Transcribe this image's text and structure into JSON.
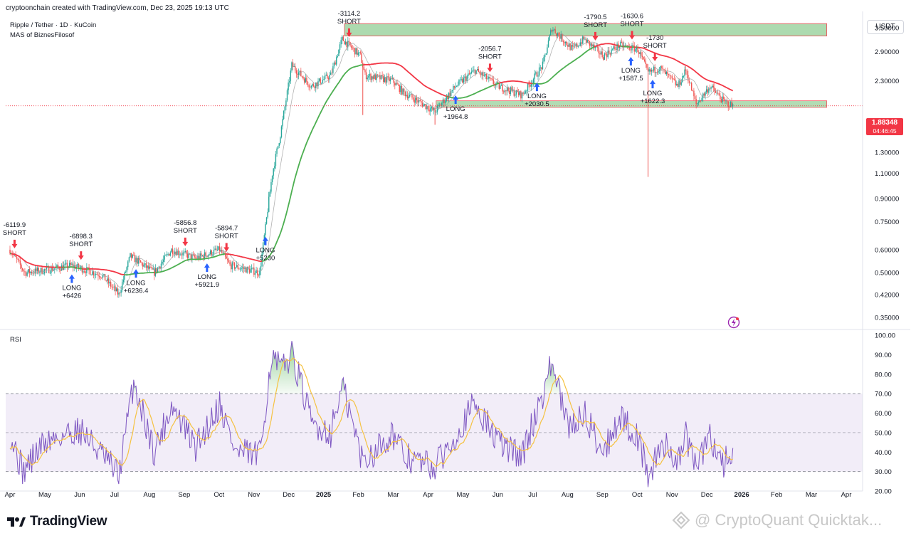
{
  "header": {
    "title": "cryptoonchain created with TradingView.com, Dec 23, 2025 19:13 UTC"
  },
  "legend": {
    "symbol": "Ripple / Tether · 1D · KuCoin",
    "indicator": "MAS of BiznesFilosof"
  },
  "unit": "USDT",
  "price_badge": {
    "price": "1.88348",
    "time": "04:46:45"
  },
  "rsi_label": "RSI",
  "brand": "TradingView",
  "watermark": "@ CryptoQuant Quicktak...",
  "colors": {
    "up": "#26a69a",
    "down": "#ef5350",
    "ma_fast": "#7fb27f",
    "ma_green": "#4caf50",
    "ma_red": "#f23645",
    "rsi": "#7e57c2",
    "rsi_ma": "#f5c242",
    "band_fill": "#ede7f6",
    "zone_fill": "#a5d6a7",
    "buy": "#2962ff",
    "sell": "#f23645"
  },
  "chart_data": [
    {
      "type": "candlestick",
      "y_scale": "log",
      "y_ticks": [
        "3.50000",
        "2.90000",
        "2.30000",
        "1.60000",
        "1.30000",
        "1.10000",
        "0.90000",
        "0.75000",
        "0.60000",
        "0.50000",
        "0.42000",
        "0.35000"
      ],
      "ylim": [
        0.32,
        3.9
      ],
      "x_ticks": [
        "Apr",
        "May",
        "Jun",
        "Jul",
        "Aug",
        "Sep",
        "Oct",
        "Nov",
        "Dec",
        "2025",
        "Feb",
        "Mar",
        "Apr",
        "May",
        "Jun",
        "Jul",
        "Aug",
        "Sep",
        "Oct",
        "Nov",
        "Dec",
        "2026",
        "Feb",
        "Mar",
        "Apr"
      ],
      "last_price": 1.88348,
      "price_anchors": [
        [
          "2024-04-01",
          0.6
        ],
        [
          "2024-04-14",
          0.5
        ],
        [
          "2024-05-01",
          0.51
        ],
        [
          "2024-05-25",
          0.53
        ],
        [
          "2024-06-20",
          0.49
        ],
        [
          "2024-07-05",
          0.42
        ],
        [
          "2024-07-15",
          0.57
        ],
        [
          "2024-08-05",
          0.5
        ],
        [
          "2024-08-20",
          0.6
        ],
        [
          "2024-09-10",
          0.56
        ],
        [
          "2024-10-01",
          0.6
        ],
        [
          "2024-10-10",
          0.53
        ],
        [
          "2024-11-05",
          0.5
        ],
        [
          "2024-11-16",
          1.1
        ],
        [
          "2024-11-23",
          1.5
        ],
        [
          "2024-12-03",
          2.6
        ],
        [
          "2024-12-20",
          2.2
        ],
        [
          "2025-01-06",
          2.4
        ],
        [
          "2025-01-16",
          3.2
        ],
        [
          "2025-02-01",
          2.8
        ],
        [
          "2025-02-05",
          2.4
        ],
        [
          "2025-03-01",
          2.3
        ],
        [
          "2025-03-10",
          2.1
        ],
        [
          "2025-04-07",
          1.8
        ],
        [
          "2025-04-25",
          2.2
        ],
        [
          "2025-05-12",
          2.5
        ],
        [
          "2025-06-01",
          2.2
        ],
        [
          "2025-06-22",
          2.05
        ],
        [
          "2025-07-10",
          2.6
        ],
        [
          "2025-07-18",
          3.5
        ],
        [
          "2025-08-05",
          2.95
        ],
        [
          "2025-08-15",
          3.2
        ],
        [
          "2025-09-01",
          2.8
        ],
        [
          "2025-09-15",
          3.05
        ],
        [
          "2025-10-01",
          2.95
        ],
        [
          "2025-10-10",
          2.45
        ],
        [
          "2025-10-20",
          2.55
        ],
        [
          "2025-11-05",
          2.2
        ],
        [
          "2025-11-12",
          2.5
        ],
        [
          "2025-11-21",
          1.9
        ],
        [
          "2025-12-03",
          2.2
        ],
        [
          "2025-12-15",
          1.95
        ],
        [
          "2025-12-23",
          1.88
        ]
      ],
      "ma_red_end": [
        "2025-12-23",
        2.12
      ],
      "resistance_zone": {
        "start": "2025-01-18",
        "end": "2026-03-15",
        "y_low": 3.28,
        "y_high": 3.62
      },
      "support_zone": {
        "start": "2025-04-08",
        "end": "2026-03-15",
        "y_low": 1.86,
        "y_high": 1.96
      },
      "wicks": [
        {
          "date": "2025-10-10",
          "low": 1.07
        },
        {
          "date": "2025-02-03",
          "low": 1.75
        },
        {
          "date": "2025-04-07",
          "low": 1.62
        },
        {
          "date": "2024-11-13",
          "high": 0.95
        }
      ],
      "signals": [
        {
          "date": "2024-04-05",
          "side": "short",
          "lines": [
            "-6119.9",
            "SHORT"
          ]
        },
        {
          "date": "2024-05-25",
          "side": "long",
          "lines": [
            "LONG",
            "+6426"
          ]
        },
        {
          "date": "2024-06-02",
          "side": "short",
          "lines": [
            "-6898.3",
            "SHORT"
          ]
        },
        {
          "date": "2024-07-20",
          "side": "long",
          "lines": [
            "LONG",
            "+6236.4"
          ]
        },
        {
          "date": "2024-09-01",
          "side": "short",
          "lines": [
            "-5856.8",
            "SHORT"
          ]
        },
        {
          "date": "2024-09-20",
          "side": "long",
          "lines": [
            "LONG",
            "+5921.9"
          ]
        },
        {
          "date": "2024-10-07",
          "side": "short",
          "lines": [
            "-5894.7",
            "SHORT"
          ]
        },
        {
          "date": "2024-11-10",
          "side": "long",
          "lines": [
            "LONG",
            "+5230"
          ]
        },
        {
          "date": "2025-01-22",
          "side": "short",
          "lines": [
            "-3114.2",
            "SHORT"
          ]
        },
        {
          "date": "2025-04-25",
          "side": "long",
          "lines": [
            "LONG",
            "+1964.8"
          ]
        },
        {
          "date": "2025-05-25",
          "side": "short",
          "lines": [
            "-2056.7",
            "SHORT"
          ]
        },
        {
          "date": "2025-07-05",
          "side": "long",
          "lines": [
            "LONG",
            "+2030.5"
          ]
        },
        {
          "date": "2025-08-25",
          "side": "short",
          "lines": [
            "-1790.5",
            "SHORT"
          ]
        },
        {
          "date": "2025-09-25",
          "side": "long",
          "lines": [
            "LONG",
            "+1587.5"
          ]
        },
        {
          "date": "2025-09-26",
          "side": "short",
          "lines": [
            "-1630.6",
            "SHORT"
          ]
        },
        {
          "date": "2025-10-14",
          "side": "long",
          "lines": [
            "LONG",
            "+1622.3"
          ]
        },
        {
          "date": "2025-10-16",
          "side": "short",
          "lines": [
            "-1730",
            "SHORT"
          ]
        }
      ]
    },
    {
      "type": "line",
      "title": "RSI",
      "y_ticks": [
        "100.00",
        "90.00",
        "80.00",
        "70.00",
        "60.00",
        "50.00",
        "40.00",
        "30.00",
        "20.00"
      ],
      "ylim": [
        20,
        100
      ],
      "bands": [
        30,
        50,
        70
      ],
      "rsi_anchors": [
        [
          "2024-04-01",
          50
        ],
        [
          "2024-04-12",
          30
        ],
        [
          "2024-05-01",
          45
        ],
        [
          "2024-06-01",
          52
        ],
        [
          "2024-07-05",
          28
        ],
        [
          "2024-07-18",
          76
        ],
        [
          "2024-08-05",
          40
        ],
        [
          "2024-08-20",
          64
        ],
        [
          "2024-09-10",
          42
        ],
        [
          "2024-10-01",
          65
        ],
        [
          "2024-10-15",
          40
        ],
        [
          "2024-11-05",
          38
        ],
        [
          "2024-11-15",
          88
        ],
        [
          "2024-11-25",
          82
        ],
        [
          "2024-12-03",
          92
        ],
        [
          "2024-12-20",
          55
        ],
        [
          "2025-01-06",
          50
        ],
        [
          "2025-01-16",
          74
        ],
        [
          "2025-02-03",
          35
        ],
        [
          "2025-03-01",
          50
        ],
        [
          "2025-03-10",
          38
        ],
        [
          "2025-04-07",
          32
        ],
        [
          "2025-05-12",
          65
        ],
        [
          "2025-06-01",
          45
        ],
        [
          "2025-06-22",
          38
        ],
        [
          "2025-07-10",
          70
        ],
        [
          "2025-07-18",
          86
        ],
        [
          "2025-08-01",
          52
        ],
        [
          "2025-08-15",
          60
        ],
        [
          "2025-09-01",
          40
        ],
        [
          "2025-09-15",
          58
        ],
        [
          "2025-10-01",
          48
        ],
        [
          "2025-10-10",
          28
        ],
        [
          "2025-10-25",
          45
        ],
        [
          "2025-11-05",
          35
        ],
        [
          "2025-11-12",
          48
        ],
        [
          "2025-11-21",
          32
        ],
        [
          "2025-12-03",
          48
        ],
        [
          "2025-12-15",
          34
        ],
        [
          "2025-12-23",
          40
        ]
      ]
    }
  ]
}
